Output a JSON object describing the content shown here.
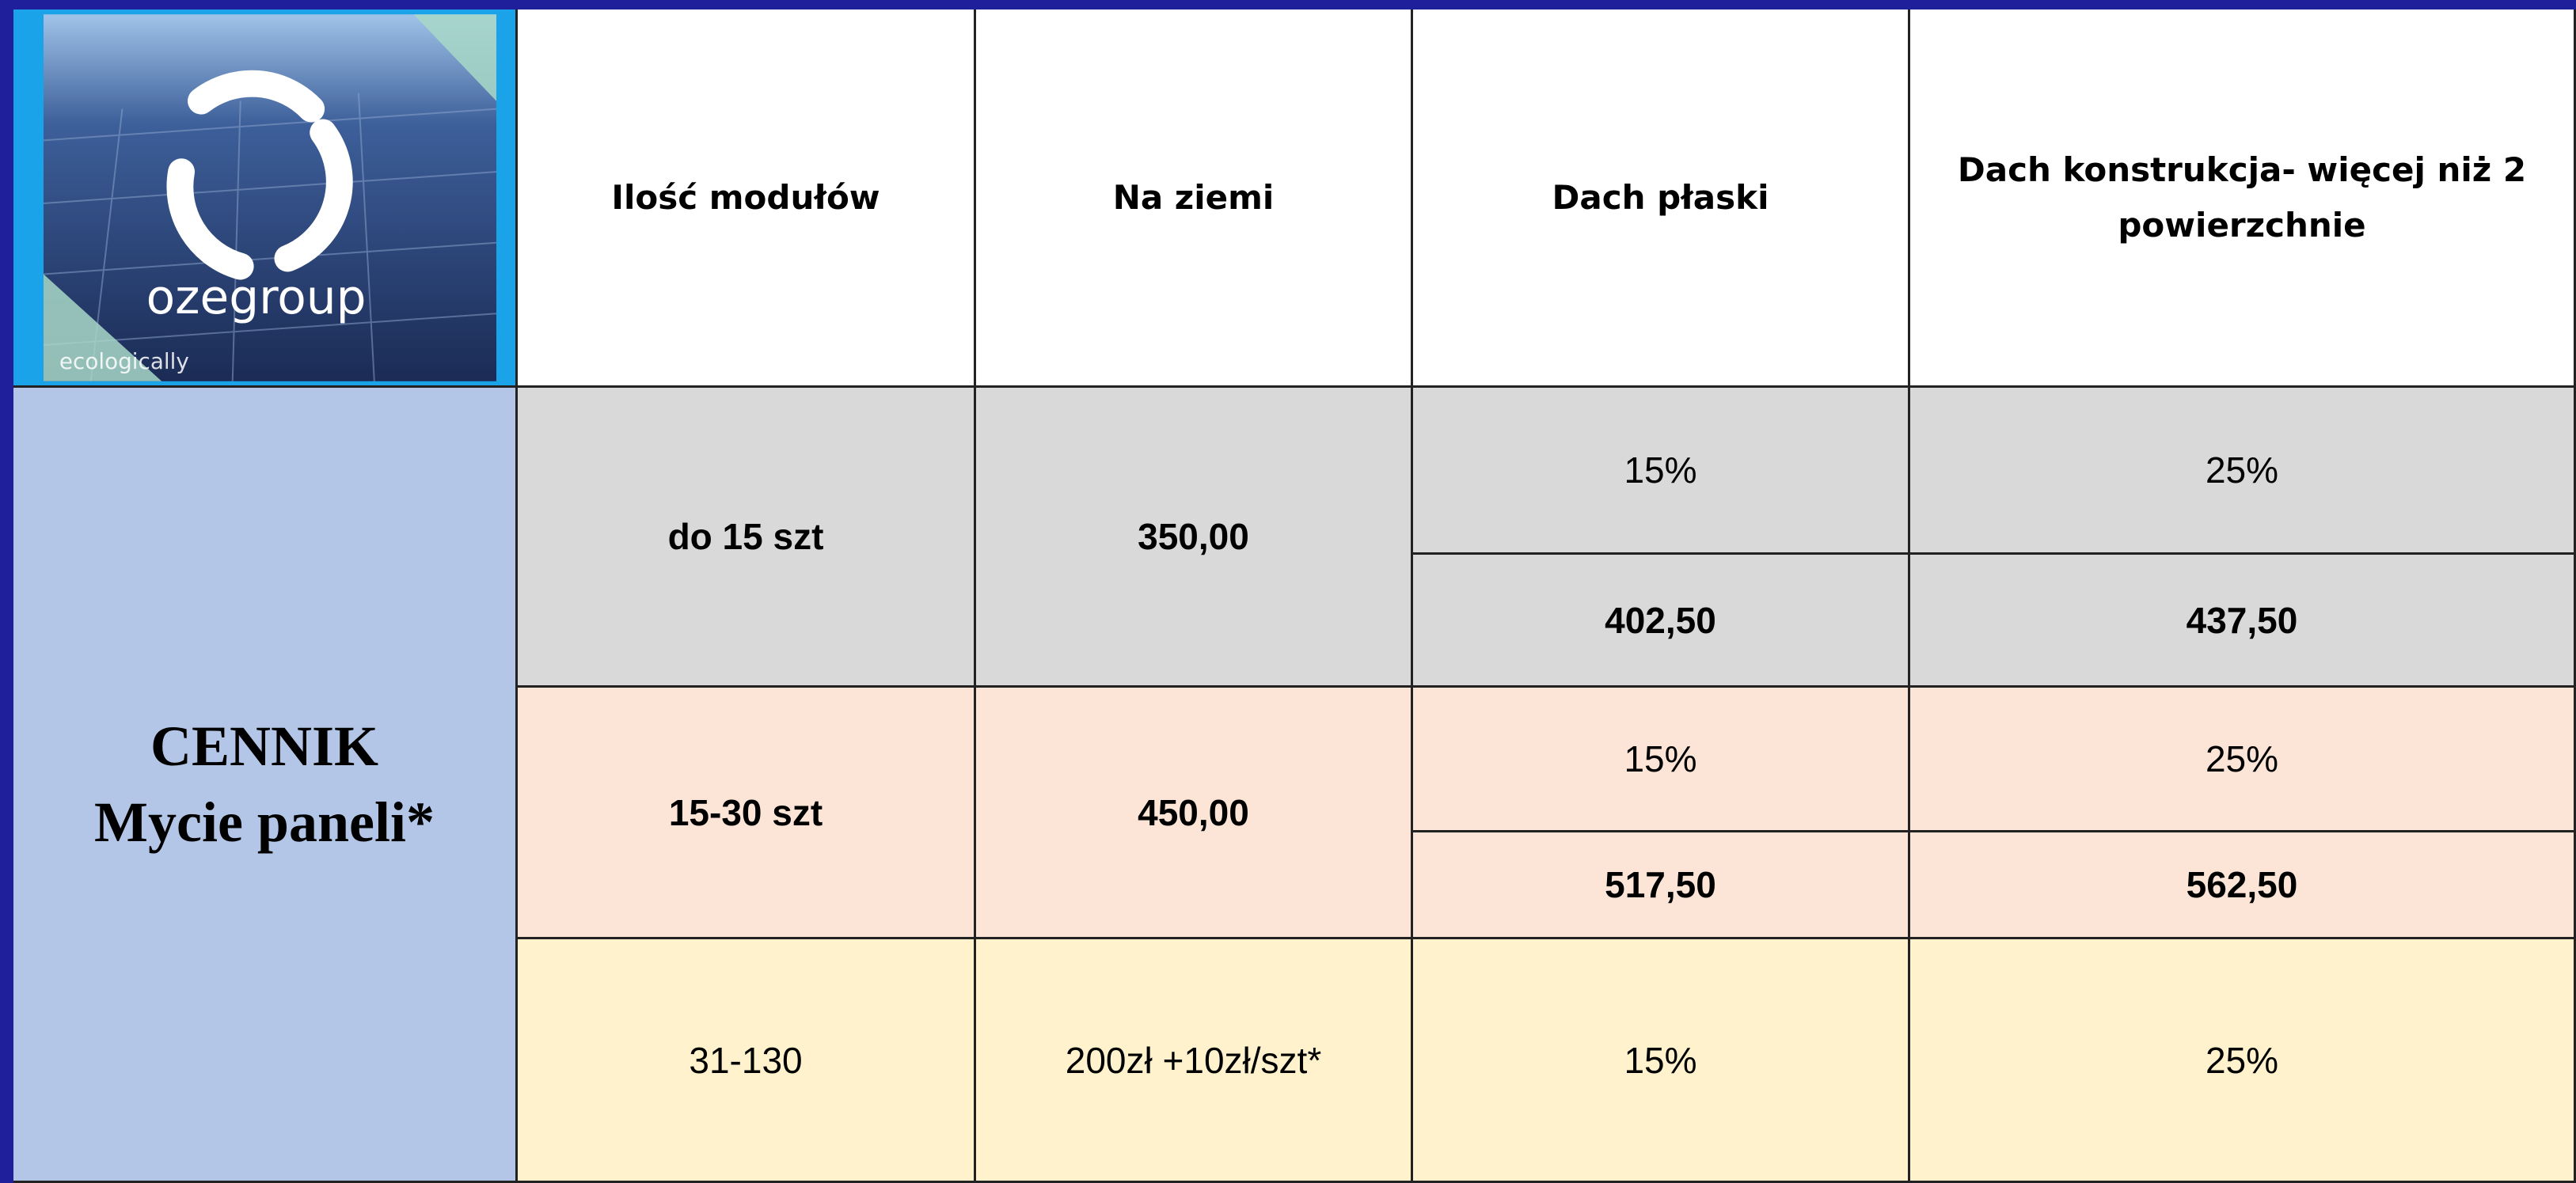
{
  "logo": {
    "brand": "ozegroup",
    "tagline": "ecologically"
  },
  "side_label": {
    "line1": "CENNIK",
    "line2": "Mycie paneli*"
  },
  "header": {
    "columns": [
      "Ilość modułów",
      "Na ziemi",
      "Dach płaski",
      "Dach konstrukcja- więcej niż 2 powierzchnie"
    ]
  },
  "rows": [
    {
      "modules": "do 15 szt",
      "ground": "350,00",
      "flat_pct": "15%",
      "construction_pct": "25%",
      "flat_price": "402,50",
      "construction_price": "437,50"
    },
    {
      "modules": "15-30 szt",
      "ground": "450,00",
      "flat_pct": "15%",
      "construction_pct": "25%",
      "flat_price": "517,50",
      "construction_price": "562,50"
    },
    {
      "modules": "31-130",
      "ground": "200zł +10zł/szt*",
      "flat_pct": "15%",
      "construction_pct": "25%"
    }
  ]
}
